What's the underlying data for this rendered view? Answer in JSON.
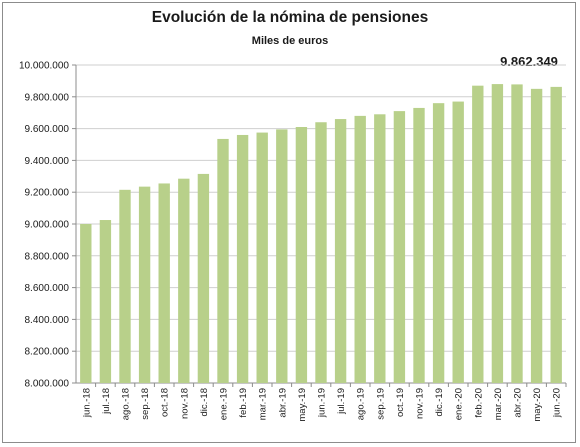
{
  "chart_data": {
    "type": "bar",
    "title": "Evolución de la nómina de pensiones",
    "subtitle": "Miles de euros",
    "annotation": "9.862.349",
    "ylim": [
      8000000,
      10000000
    ],
    "ytick_values": [
      8000000,
      8200000,
      8400000,
      8600000,
      8800000,
      9000000,
      9200000,
      9400000,
      9600000,
      9800000,
      10000000
    ],
    "ytick_labels": [
      "8.000.000",
      "8.200.000",
      "8.400.000",
      "8.600.000",
      "8.800.000",
      "9.000.000",
      "9.200.000",
      "9.400.000",
      "9.600.000",
      "9.800.000",
      "10.000.000"
    ],
    "categories": [
      "jun.-18",
      "jul.-18",
      "ago.-18",
      "sep.-18",
      "oct.-18",
      "nov.-18",
      "dic.-18",
      "ene.-19",
      "feb.-19",
      "mar.-19",
      "abr.-19",
      "may.-19",
      "jun.-19",
      "jul.-19",
      "ago.-19",
      "sep.-19",
      "oct.-19",
      "nov.-19",
      "dic.-19",
      "ene.-20",
      "feb.-20",
      "mar.-20",
      "abr.-20",
      "may.-20",
      "jun.-20"
    ],
    "values": [
      9000000,
      9025000,
      9215000,
      9235000,
      9255000,
      9285000,
      9315000,
      9535000,
      9560000,
      9575000,
      9595000,
      9610000,
      9640000,
      9660000,
      9680000,
      9690000,
      9710000,
      9730000,
      9760000,
      9770000,
      9870000,
      9880000,
      9878000,
      9850000,
      9862349
    ],
    "bar_color": "#b8d08a",
    "grid": true,
    "legend": "none"
  }
}
